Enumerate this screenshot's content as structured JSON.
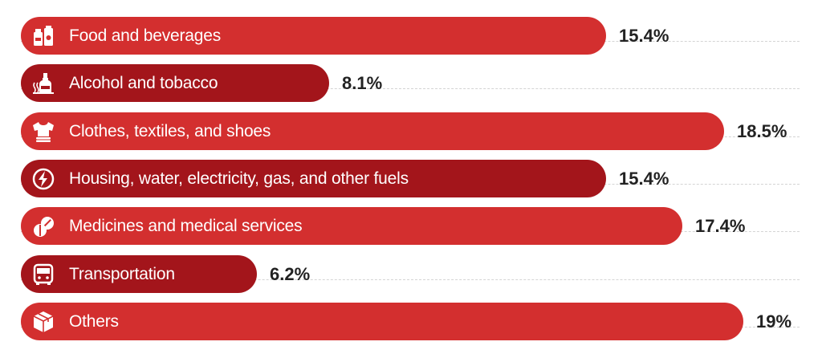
{
  "chart_data": {
    "type": "bar",
    "orientation": "horizontal",
    "categories": [
      "Food and beverages",
      "Alcohol and tobacco",
      "Clothes, textiles, and shoes",
      "Housing, water, electricity, gas, and other fuels",
      "Medicines and medical services",
      "Transportation",
      "Others"
    ],
    "values": [
      15.4,
      8.1,
      18.5,
      15.4,
      17.4,
      6.2,
      19
    ],
    "value_labels": [
      "15.4%",
      "8.1%",
      "18.5%",
      "15.4%",
      "17.4%",
      "6.2%",
      "19%"
    ],
    "icons": [
      "grocery-icon",
      "bottle-icon",
      "clothes-icon",
      "lightning-icon",
      "pills-icon",
      "bus-icon",
      "box-icon"
    ],
    "colors": [
      "#d32f2f",
      "#a3151b",
      "#d32f2f",
      "#a3151b",
      "#d32f2f",
      "#a3151b",
      "#d32f2f"
    ],
    "xlim": [
      0,
      19
    ],
    "grid": true,
    "legend": "none"
  }
}
